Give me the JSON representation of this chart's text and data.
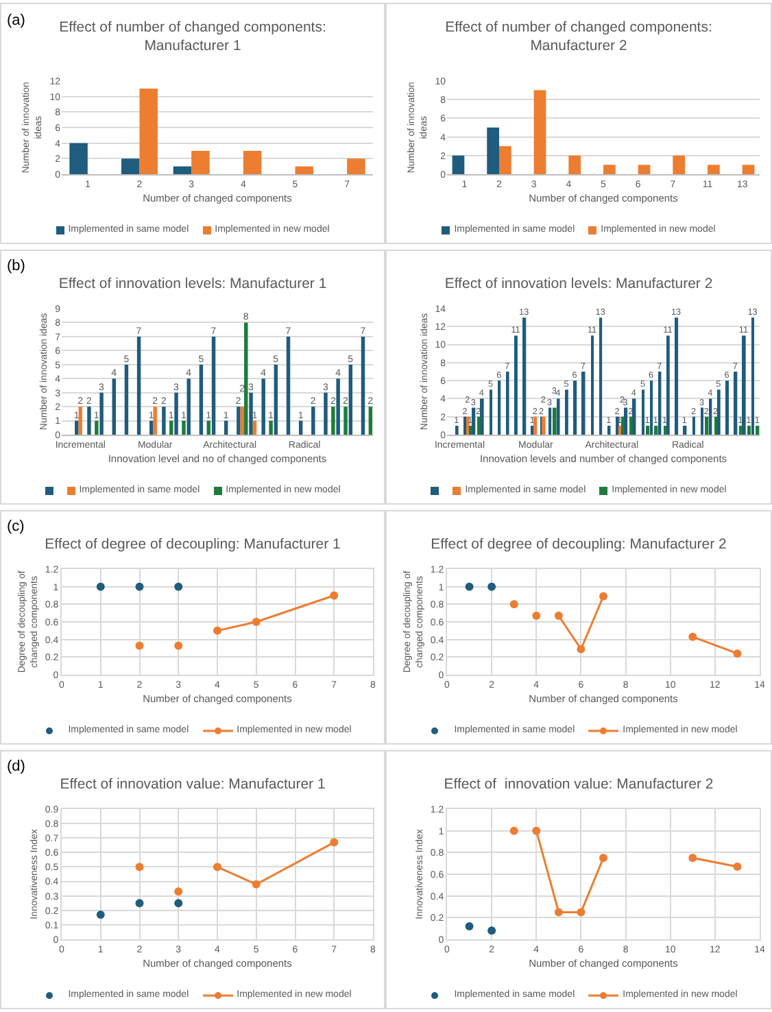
{
  "chart_data": [
    {
      "type": "bar",
      "title": "Effect of number of changed components: Manufacturer 1",
      "xlabel": "Number of changed components",
      "ylabel": "Number of innovation ideas",
      "annotations": [
        "(a)"
      ],
      "categories": [
        "1",
        "2",
        "3",
        "4",
        "5",
        "7"
      ],
      "ylim": [
        0,
        12
      ],
      "yticks": [
        0,
        2,
        4,
        6,
        8,
        10,
        12
      ],
      "grid": "y",
      "legend": "bottom",
      "series": [
        {
          "name": "Implemented in same model",
          "color": "#1f5c7e",
          "values": [
            4,
            2,
            1,
            null,
            null,
            null
          ]
        },
        {
          "name": "Implemented in new model",
          "color": "#ed7d31",
          "values": [
            null,
            11,
            3,
            3,
            1,
            2
          ]
        }
      ]
    },
    {
      "type": "bar",
      "title": "Effect of number of changed components: Manufacturer 2",
      "xlabel": "Number of changed components",
      "ylabel": "Number of innovation ideas",
      "categories": [
        "1",
        "2",
        "3",
        "4",
        "5",
        "6",
        "7",
        "11",
        "13"
      ],
      "ylim": [
        0,
        10
      ],
      "yticks": [
        0,
        2,
        4,
        6,
        8,
        10
      ],
      "grid": "y",
      "legend": "bottom",
      "series": [
        {
          "name": "Implemented in same model",
          "color": "#1f5c7e",
          "values": [
            2,
            5,
            null,
            null,
            null,
            null,
            null,
            null,
            null
          ]
        },
        {
          "name": "Implemented in new model",
          "color": "#ed7d31",
          "values": [
            null,
            3,
            9,
            2,
            1,
            1,
            2,
            1,
            1
          ]
        }
      ]
    },
    {
      "type": "bar",
      "title": "Effect of innovation levels: Manufacturer 1",
      "xlabel": "Innovation level and no of changed components",
      "ylabel": "Number of innovation ideas",
      "annotations": [
        "(b)"
      ],
      "categories": [
        "Incremental",
        null,
        null,
        null,
        null,
        null,
        "Modular",
        null,
        null,
        null,
        null,
        null,
        "Architectural",
        null,
        null,
        null,
        null,
        null,
        "Radical",
        null,
        null,
        null,
        null,
        null
      ],
      "ylim": [
        0,
        9
      ],
      "yticks": [
        0,
        1,
        2,
        3,
        4,
        5,
        6,
        7,
        8,
        9
      ],
      "grid": "y",
      "legend": "bottom",
      "data_labels": true,
      "series": [
        {
          "color": "#1f5c7e",
          "values": [
            1,
            2,
            3,
            4,
            5,
            7,
            1,
            2,
            3,
            4,
            5,
            7,
            1,
            2,
            3,
            4,
            5,
            7,
            1,
            2,
            3,
            4,
            5,
            7
          ]
        },
        {
          "name": "Implemented in same model",
          "color": "#ed7d31",
          "values": [
            2,
            null,
            null,
            null,
            null,
            null,
            2,
            null,
            null,
            null,
            null,
            null,
            null,
            2,
            1,
            null,
            null,
            null,
            null,
            null,
            null,
            null,
            null,
            null
          ]
        },
        {
          "name": "Implemented in new model",
          "color": "#1e7b3c",
          "values": [
            null,
            1,
            null,
            null,
            null,
            null,
            null,
            1,
            1,
            null,
            1,
            null,
            null,
            8,
            null,
            1,
            null,
            null,
            null,
            null,
            2,
            2,
            null,
            2
          ]
        }
      ]
    },
    {
      "type": "bar",
      "title": "Effect of innovation levels: Manufacturer 2",
      "xlabel": "Innovation levels and number of changed components",
      "ylabel": "Number of innovation ideas",
      "categories": [
        "Incremental",
        null,
        null,
        null,
        null,
        null,
        null,
        null,
        null,
        "Modular",
        null,
        null,
        null,
        null,
        null,
        null,
        null,
        null,
        "Architectural",
        null,
        null,
        null,
        null,
        null,
        null,
        null,
        null,
        "Radical",
        null,
        null,
        null,
        null,
        null,
        null,
        null,
        null
      ],
      "ylim": [
        0,
        14
      ],
      "yticks": [
        0,
        2,
        4,
        6,
        8,
        10,
        12,
        14
      ],
      "grid": "y",
      "legend": "bottom",
      "data_labels": true,
      "series": [
        {
          "color": "#1f5c7e",
          "values": [
            1,
            2,
            3,
            4,
            5,
            6,
            7,
            11,
            13,
            1,
            2,
            3,
            4,
            5,
            6,
            7,
            11,
            13,
            1,
            2,
            3,
            4,
            5,
            6,
            7,
            11,
            13,
            1,
            2,
            3,
            4,
            5,
            6,
            7,
            11,
            13
          ]
        },
        {
          "name": "Implemented in same model",
          "color": "#ed7d31",
          "values": [
            null,
            2,
            null,
            null,
            null,
            null,
            null,
            null,
            null,
            2,
            2,
            null,
            null,
            null,
            null,
            null,
            null,
            null,
            null,
            1,
            null,
            null,
            null,
            null,
            null,
            null,
            null,
            null,
            null,
            null,
            null,
            null,
            null,
            null,
            null,
            null
          ]
        },
        {
          "name": "Implemented in new model",
          "color": "#1e7b3c",
          "values": [
            null,
            1,
            2,
            null,
            null,
            null,
            null,
            null,
            null,
            null,
            null,
            3,
            null,
            null,
            null,
            null,
            null,
            null,
            null,
            2,
            2,
            null,
            1,
            1,
            1,
            null,
            null,
            null,
            null,
            2,
            2,
            null,
            null,
            1,
            1,
            1
          ]
        }
      ]
    },
    {
      "type": "line",
      "title": "Effect of degree of decoupling: Manufacturer 1",
      "xlabel": "Number of changed components",
      "ylabel": "Degree of decoupling of changed components",
      "annotations": [
        "(c)"
      ],
      "xlim": [
        0,
        8
      ],
      "xticks": [
        0,
        1,
        2,
        3,
        4,
        5,
        6,
        7,
        8
      ],
      "ylim": [
        0,
        1.2
      ],
      "yticks": [
        0,
        0.2,
        0.4,
        0.6,
        0.8,
        1,
        1.2
      ],
      "grid": true,
      "legend": "bottom",
      "marker": "circle",
      "line_style": "solid",
      "series": [
        {
          "name": "Implemented in same model",
          "type": "scatter",
          "color": "#1f5c7e",
          "x": [
            1,
            2,
            3
          ],
          "values": [
            1,
            1,
            1
          ]
        },
        {
          "name": "Implemented in new model",
          "color": "#ed7d31",
          "x": [
            2,
            null,
            3,
            null,
            4,
            5,
            7
          ],
          "values": [
            0.33,
            null,
            0.33,
            null,
            0.5,
            0.6,
            0.9
          ]
        }
      ]
    },
    {
      "type": "line",
      "title": "Effect of degree of decoupling: Manufacturer 2",
      "xlabel": "Number of changed components",
      "ylabel": "Degree of decoupling of changed components",
      "xlim": [
        0,
        14
      ],
      "xticks": [
        0,
        2,
        4,
        6,
        8,
        10,
        12,
        14
      ],
      "ylim": [
        0,
        1.2
      ],
      "yticks": [
        0,
        0.2,
        0.4,
        0.6,
        0.8,
        1,
        1.2
      ],
      "grid": true,
      "legend": "bottom",
      "marker": "circle",
      "line_style": "solid",
      "series": [
        {
          "name": "Implemented in same model",
          "type": "scatter",
          "color": "#1f5c7e",
          "x": [
            1,
            2
          ],
          "values": [
            1,
            1
          ]
        },
        {
          "name": "Implemented in new model",
          "color": "#ed7d31",
          "x": [
            3,
            null,
            4,
            null,
            5,
            6,
            7,
            null,
            11,
            13
          ],
          "values": [
            0.8,
            null,
            0.67,
            null,
            0.67,
            0.29,
            0.89,
            null,
            0.43,
            0.24
          ]
        }
      ]
    },
    {
      "type": "line",
      "title": "Effect of innovation value: Manufacturer 1",
      "xlabel": "Number of changed components",
      "ylabel": "Innovativeness Index",
      "annotations": [
        "(d)"
      ],
      "xlim": [
        0,
        8
      ],
      "xticks": [
        0,
        1,
        2,
        3,
        4,
        5,
        6,
        7,
        8
      ],
      "ylim": [
        0,
        0.9
      ],
      "yticks": [
        0,
        0.1,
        0.2,
        0.3,
        0.4,
        0.5,
        0.6,
        0.7,
        0.8,
        0.9
      ],
      "grid": true,
      "legend": "bottom",
      "marker": "circle",
      "line_style": "solid",
      "series": [
        {
          "name": "Implemented in same model",
          "type": "scatter",
          "color": "#1f5c7e",
          "x": [
            1,
            2,
            3
          ],
          "values": [
            0.17,
            0.25,
            0.25
          ]
        },
        {
          "name": "Implemented in new model",
          "color": "#ed7d31",
          "x": [
            2,
            null,
            3,
            null,
            4,
            5,
            7
          ],
          "values": [
            0.5,
            null,
            0.33,
            null,
            0.5,
            0.38,
            0.67
          ]
        }
      ]
    },
    {
      "type": "line",
      "title": "Effect of  innovation value: Manufacturer 2",
      "xlabel": "Number of changed components",
      "ylabel": "Innovativeness Index",
      "xlim": [
        0,
        14
      ],
      "xticks": [
        0,
        2,
        4,
        6,
        8,
        10,
        12,
        14
      ],
      "ylim": [
        0,
        1.2
      ],
      "yticks": [
        0,
        0.2,
        0.4,
        0.6,
        0.8,
        1,
        1.2
      ],
      "grid": true,
      "legend": "bottom",
      "marker": "circle",
      "line_style": "solid",
      "series": [
        {
          "name": "Implemented in same model",
          "type": "scatter",
          "color": "#1f5c7e",
          "x": [
            1,
            2
          ],
          "values": [
            0.12,
            0.08
          ]
        },
        {
          "name": "Implemented in new model",
          "color": "#ed7d31",
          "x": [
            3,
            null,
            4,
            5,
            6,
            7,
            null,
            11,
            13
          ],
          "values": [
            1,
            null,
            1,
            0.25,
            0.25,
            0.75,
            null,
            0.75,
            0.67
          ]
        }
      ]
    }
  ]
}
